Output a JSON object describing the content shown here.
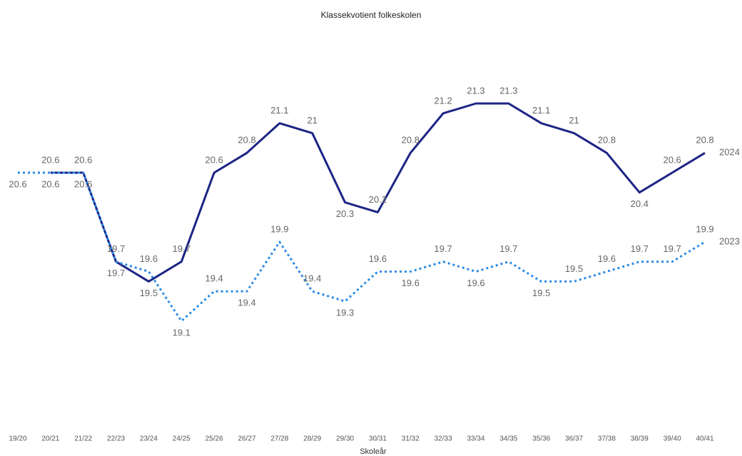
{
  "chart_data": {
    "type": "line",
    "title": "Klassekvotient folkeskolen",
    "x_label": "Skoleår",
    "categories": [
      "19/20",
      "20/21",
      "21/22",
      "22/23",
      "23/24",
      "24/25",
      "25/26",
      "26/27",
      "27/28",
      "28/29",
      "29/30",
      "30/31",
      "31/32",
      "32/33",
      "33/34",
      "34/35",
      "35/36",
      "36/37",
      "37/38",
      "38/39",
      "39/40",
      "40/41"
    ],
    "series": [
      {
        "name": "2024",
        "color": "#1c2585",
        "dash": false,
        "values": [
          null,
          20.6,
          20.6,
          19.7,
          19.5,
          19.7,
          20.6,
          20.8,
          21.1,
          21.0,
          20.3,
          20.2,
          20.8,
          21.2,
          21.3,
          21.3,
          21.1,
          21.0,
          20.8,
          20.4,
          20.6,
          20.8
        ]
      },
      {
        "name": "2023",
        "color": "#2b8ae6",
        "dash": true,
        "values": [
          20.6,
          20.6,
          20.6,
          19.7,
          19.6,
          19.1,
          19.4,
          19.4,
          19.9,
          19.4,
          19.3,
          19.6,
          19.6,
          19.7,
          19.6,
          19.7,
          19.5,
          19.5,
          19.6,
          19.7,
          19.7,
          19.9
        ]
      }
    ],
    "ylim": [
      18.5,
      22.0
    ],
    "grid": false
  }
}
